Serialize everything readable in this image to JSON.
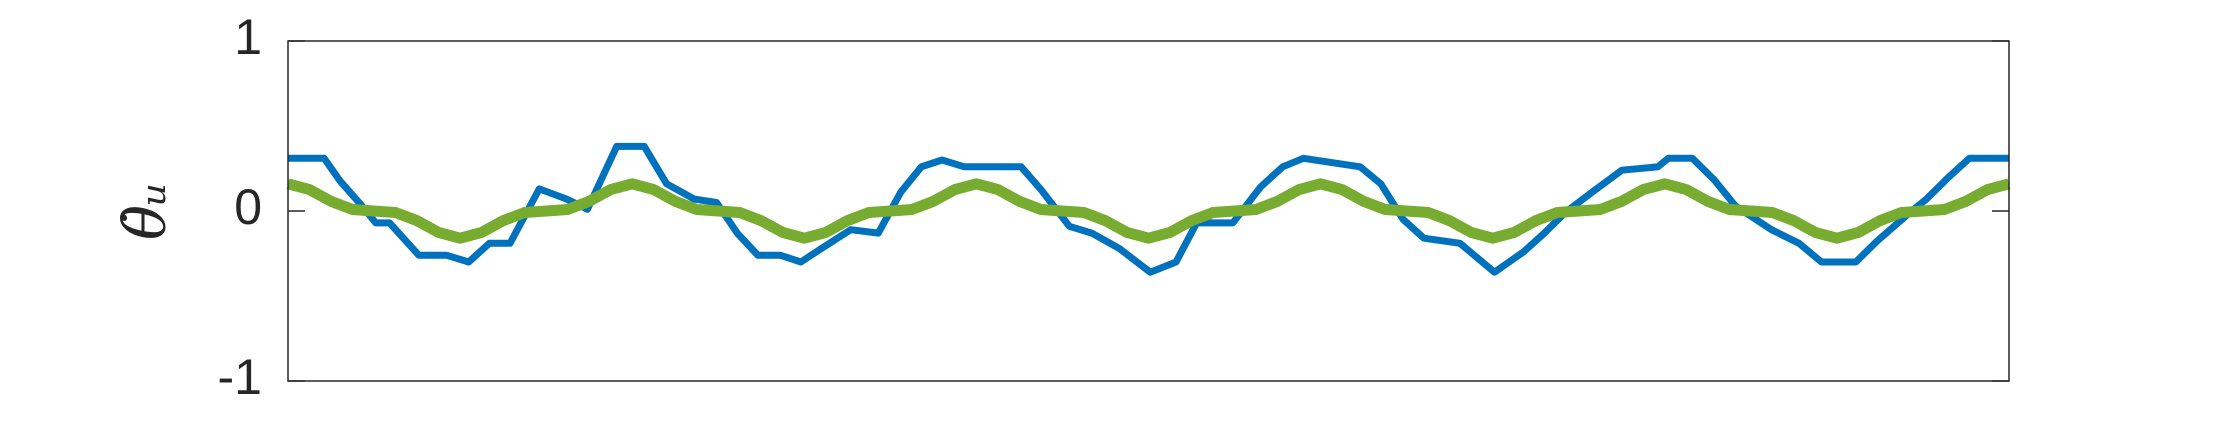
{
  "chart_data": {
    "type": "line",
    "ylabel": "θ̇ᵤ",
    "ylim": [
      -1,
      1
    ],
    "yticks": [
      -1,
      0,
      1
    ],
    "xlim": [
      0,
      100
    ],
    "grid": false,
    "series": [
      {
        "color": "#0072bd",
        "x": [
          0,
          2.1,
          3.0,
          4.3,
          5.1,
          5.9,
          7.6,
          9.2,
          10.5,
          11.7,
          12.9,
          14.6,
          16.2,
          17.4,
          19.1,
          20.7,
          22.0,
          23.6,
          24.9,
          26.1,
          27.3,
          28.6,
          29.8,
          31.0,
          32.7,
          34.3,
          35.6,
          36.8,
          38.0,
          39.3,
          42.6,
          43.8,
          45.4,
          46.7,
          48.3,
          50.1,
          51.6,
          52.8,
          54.9,
          56.5,
          57.8,
          59.0,
          62.3,
          63.5,
          64.8,
          66.0,
          68.1,
          70.1,
          71.8,
          73.0,
          74.2,
          75.9,
          76.7,
          77.5,
          79.6,
          80.2,
          81.6,
          82.9,
          84.1,
          86.2,
          87.8,
          89.1,
          91.1,
          92.3,
          94.0,
          95.2,
          96.5,
          97.7,
          100
        ],
        "values": [
          0.31,
          0.31,
          0.18,
          0.03,
          -0.07,
          -0.07,
          -0.26,
          -0.26,
          -0.3,
          -0.19,
          -0.19,
          0.13,
          0.07,
          0.01,
          0.38,
          0.38,
          0.16,
          0.07,
          0.05,
          -0.13,
          -0.26,
          -0.26,
          -0.3,
          -0.22,
          -0.11,
          -0.13,
          0.11,
          0.26,
          0.3,
          0.26,
          0.26,
          0.12,
          -0.09,
          -0.13,
          -0.22,
          -0.36,
          -0.3,
          -0.07,
          -0.07,
          0.14,
          0.26,
          0.31,
          0.26,
          0.16,
          -0.05,
          -0.16,
          -0.19,
          -0.36,
          -0.24,
          -0.13,
          -0.01,
          0.12,
          0.18,
          0.24,
          0.26,
          0.31,
          0.31,
          0.18,
          0.03,
          -0.11,
          -0.19,
          -0.3,
          -0.3,
          -0.18,
          -0.03,
          0.07,
          0.2,
          0.31,
          0.31
        ]
      },
      {
        "color": "#77ac30",
        "values": [
          0.16,
          0.126,
          0.057,
          0.009,
          0,
          -0.009,
          -0.057,
          -0.126,
          -0.16,
          -0.126,
          -0.057,
          -0.009,
          0,
          0.009,
          0.057,
          0.126,
          0.16,
          0.126,
          0.057,
          0.009,
          0,
          -0.009,
          -0.057,
          -0.126,
          -0.16,
          -0.126,
          -0.057,
          -0.009,
          0,
          0.009,
          0.057,
          0.126,
          0.16,
          0.126,
          0.057,
          0.009,
          0,
          -0.009,
          -0.057,
          -0.126,
          -0.16,
          -0.126,
          -0.057,
          -0.009,
          0,
          0.009,
          0.057,
          0.126,
          0.16,
          0.126,
          0.057,
          0.009,
          0,
          -0.009,
          -0.057,
          -0.126,
          -0.16,
          -0.126,
          -0.057,
          -0.009,
          0,
          0.009,
          0.057,
          0.126,
          0.16,
          0.126,
          0.057,
          0.009,
          0,
          -0.009,
          -0.057,
          -0.126,
          -0.16,
          -0.126,
          -0.057,
          -0.009,
          0,
          0.009,
          0.057,
          0.126,
          0.16
        ]
      }
    ]
  }
}
